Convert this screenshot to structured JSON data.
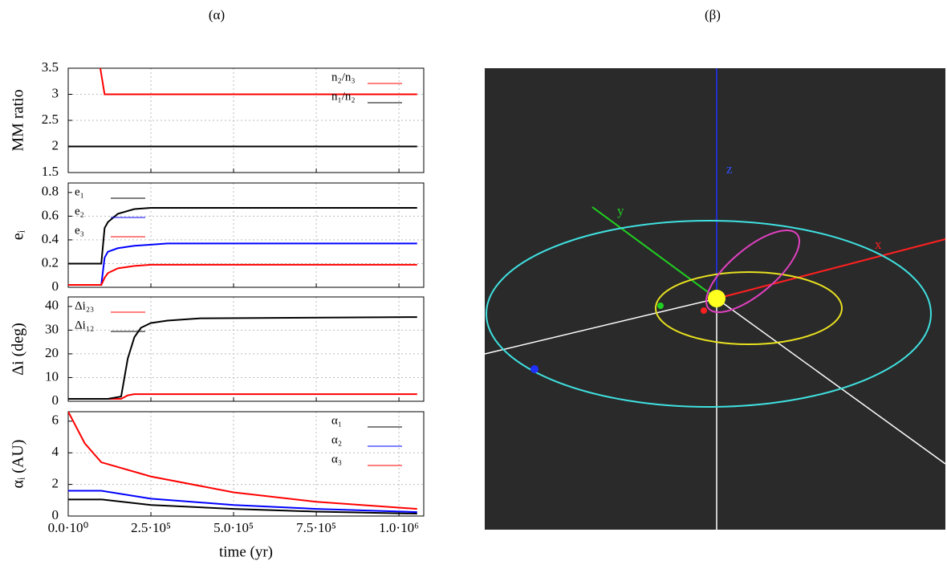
{
  "panel_labels": [
    "(α)",
    "(β)"
  ],
  "scene_labels": {
    "z": "z",
    "y": "y",
    "x": "x"
  },
  "chart_data": [
    {
      "type": "line",
      "ylabel": "MM ratio",
      "legend": "upper right",
      "grid": true,
      "x": [
        0,
        97000,
        110000,
        1055000
      ],
      "xlim": [
        0,
        1075000
      ],
      "ylim": [
        1.5,
        3.5
      ],
      "yticks": [
        1.5,
        2,
        2.5,
        3,
        3.5
      ],
      "series": [
        {
          "name": "n₂/n₃",
          "color": "#ff0000",
          "values": [
            null,
            3.5,
            3.0,
            3.0
          ]
        },
        {
          "name": "n₁/n₂",
          "color": "#000000",
          "values": [
            2,
            2,
            2,
            2
          ]
        }
      ]
    },
    {
      "type": "line",
      "ylabel": "eᵢ",
      "legend": "upper left",
      "grid": true,
      "x": [
        0,
        100000,
        110000,
        120000,
        150000,
        200000,
        250000,
        300000,
        1055000
      ],
      "xlim": [
        0,
        1075000
      ],
      "ylim": [
        0,
        0.88
      ],
      "yticks": [
        0,
        0.2,
        0.4,
        0.6,
        0.8
      ],
      "series": [
        {
          "name": "e₁",
          "color": "#000000",
          "values": [
            0.2,
            0.2,
            0.5,
            0.55,
            0.62,
            0.66,
            0.67,
            0.67,
            0.67
          ]
        },
        {
          "name": "e₂",
          "color": "#0000ff",
          "values": [
            0.02,
            0.02,
            0.25,
            0.3,
            0.33,
            0.35,
            0.36,
            0.37,
            0.37
          ]
        },
        {
          "name": "e₃",
          "color": "#ff0000",
          "values": [
            0.02,
            0.02,
            0.08,
            0.12,
            0.16,
            0.18,
            0.19,
            0.19,
            0.19
          ]
        }
      ]
    },
    {
      "type": "line",
      "ylabel": "Δi (deg)",
      "legend": "upper left",
      "grid": true,
      "x": [
        0,
        120000,
        160000,
        180000,
        200000,
        220000,
        250000,
        300000,
        400000,
        1055000
      ],
      "xlim": [
        0,
        1075000
      ],
      "ylim": [
        0,
        44
      ],
      "yticks": [
        0,
        10,
        20,
        30,
        40
      ],
      "series": [
        {
          "name": "Δi₂₃",
          "color": "#ff0000",
          "values": [
            1,
            1,
            1,
            2.5,
            3,
            3,
            3,
            3,
            3,
            3
          ]
        },
        {
          "name": "Δi₁₂",
          "color": "#000000",
          "values": [
            1,
            1,
            2,
            18,
            27,
            31,
            33,
            34,
            35,
            35.5
          ]
        }
      ]
    },
    {
      "type": "line",
      "ylabel": "αᵢ (AU)",
      "xlabel": "time (yr)",
      "legend": "upper right",
      "grid": true,
      "x": [
        0,
        50000,
        100000,
        250000,
        500000,
        750000,
        1055000
      ],
      "xlim": [
        0,
        1075000
      ],
      "ylim": [
        0,
        6.6
      ],
      "yticks": [
        0,
        2,
        4,
        6
      ],
      "xticks": [
        {
          "value": 0,
          "label": "0.0·10⁰"
        },
        {
          "value": 250000,
          "label": "2.5·10⁵"
        },
        {
          "value": 500000,
          "label": "5.0·10⁵"
        },
        {
          "value": 750000,
          "label": "7.5·10⁵"
        },
        {
          "value": 1000000,
          "label": "1.0·10⁶"
        }
      ],
      "series": [
        {
          "name": "α₁",
          "color": "#000000",
          "values": [
            1.05,
            1.05,
            1.05,
            0.7,
            0.45,
            0.28,
            0.15
          ]
        },
        {
          "name": "α₂",
          "color": "#0000ff",
          "values": [
            1.6,
            1.6,
            1.6,
            1.1,
            0.7,
            0.45,
            0.25
          ]
        },
        {
          "name": "α₃",
          "color": "#ff0000",
          "values": [
            6.6,
            4.6,
            3.4,
            2.5,
            1.5,
            0.9,
            0.45
          ]
        }
      ]
    }
  ]
}
